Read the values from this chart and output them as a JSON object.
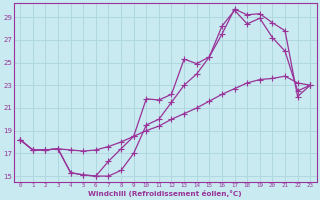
{
  "xlabel": "Windchill (Refroidissement éolien,°C)",
  "background_color": "#c8eaf0",
  "grid_color": "#b0d8e0",
  "line_color": "#993399",
  "xlim": [
    -0.5,
    23.5
  ],
  "ylim": [
    14.5,
    30.2
  ],
  "yticks": [
    15,
    17,
    19,
    21,
    23,
    25,
    27,
    29
  ],
  "xticks": [
    0,
    1,
    2,
    3,
    4,
    5,
    6,
    7,
    8,
    9,
    10,
    11,
    12,
    13,
    14,
    15,
    16,
    17,
    18,
    19,
    20,
    21,
    22,
    23
  ],
  "curve1_x": [
    0,
    1,
    2,
    3,
    4,
    5,
    6,
    7,
    8,
    9,
    10,
    11,
    12,
    13,
    14,
    15,
    16,
    17,
    18,
    19,
    20,
    21,
    22,
    23
  ],
  "curve1_y": [
    18.2,
    17.3,
    17.3,
    17.4,
    15.3,
    15.1,
    15.0,
    16.3,
    17.4,
    18.5,
    21.8,
    21.7,
    22.2,
    25.3,
    24.9,
    25.5,
    28.2,
    29.6,
    28.4,
    28.9,
    27.2,
    26.0,
    22.5,
    23.0
  ],
  "curve2_x": [
    0,
    1,
    2,
    3,
    4,
    5,
    6,
    7,
    8,
    9,
    10,
    11,
    12,
    13,
    14,
    15,
    16,
    17,
    18,
    19,
    20,
    21,
    22,
    23
  ],
  "curve2_y": [
    18.2,
    17.3,
    17.3,
    17.4,
    15.3,
    15.1,
    15.0,
    15.0,
    15.5,
    17.0,
    19.5,
    20.0,
    21.5,
    23.0,
    24.0,
    25.5,
    27.5,
    29.7,
    29.2,
    29.3,
    28.5,
    27.8,
    22.0,
    23.0
  ],
  "curve3_x": [
    0,
    1,
    2,
    3,
    4,
    5,
    6,
    7,
    8,
    9,
    10,
    11,
    12,
    13,
    14,
    15,
    16,
    17,
    18,
    19,
    20,
    21,
    22,
    23
  ],
  "curve3_y": [
    18.2,
    17.3,
    17.3,
    17.4,
    17.3,
    17.2,
    17.3,
    17.6,
    18.0,
    18.5,
    19.0,
    19.4,
    20.0,
    20.5,
    21.0,
    21.6,
    22.2,
    22.7,
    23.2,
    23.5,
    23.6,
    23.8,
    23.2,
    23.0
  ]
}
